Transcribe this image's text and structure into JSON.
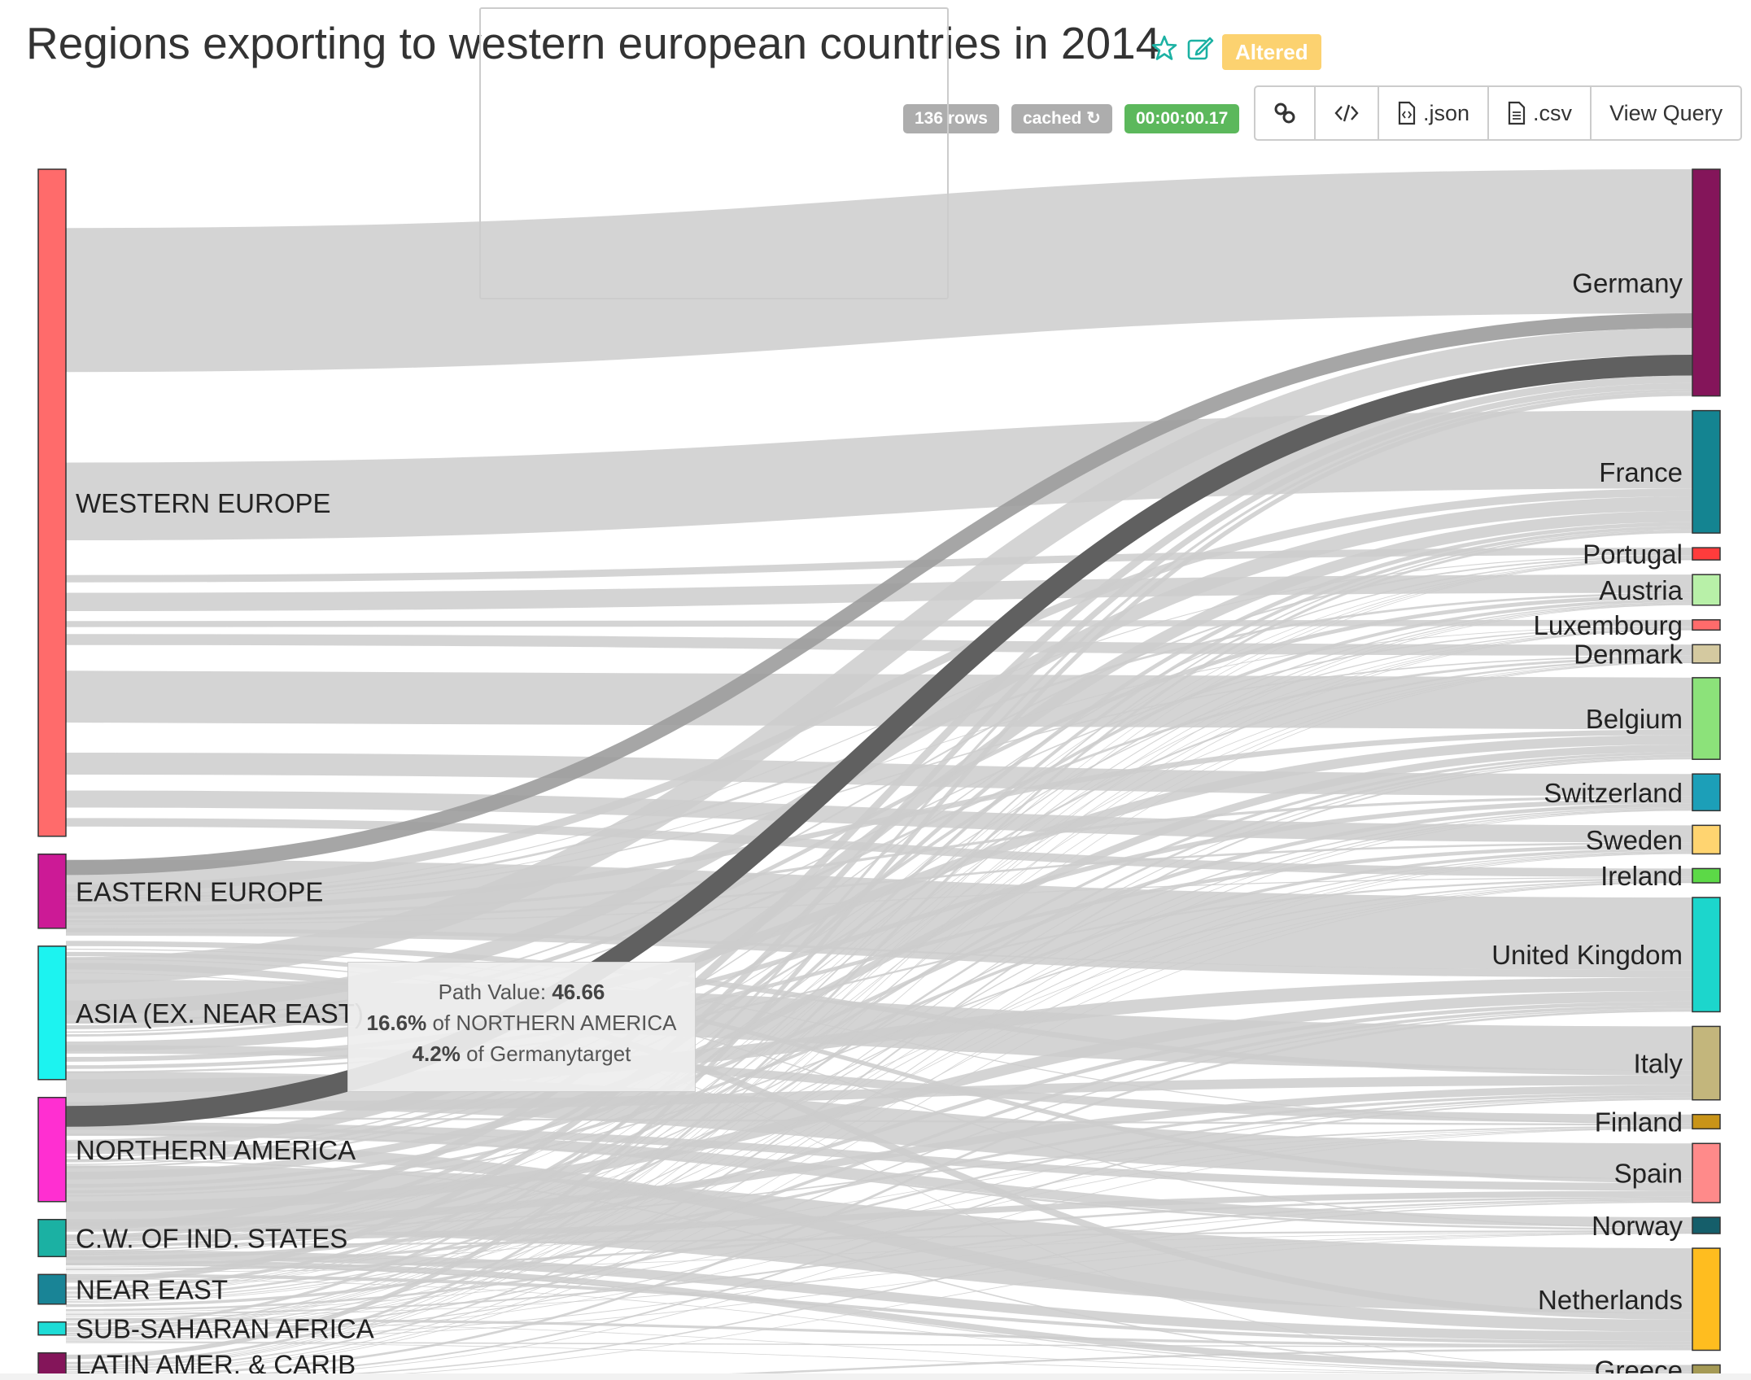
{
  "header": {
    "title": "Regions exporting to western european countries in 2014",
    "star_icon": "star-icon",
    "edit_icon": "edit-icon",
    "altered_label": "Altered",
    "rows_label": "136 rows",
    "cached_label": "cached",
    "refresh_icon": "refresh-icon",
    "timer_label": "00:00:00.17",
    "buttons": [
      {
        "icon": "link-icon",
        "label": ""
      },
      {
        "icon": "code-icon",
        "label": ""
      },
      {
        "icon": "json-file-icon",
        "label": ".json"
      },
      {
        "icon": "csv-file-icon",
        "label": ".csv"
      },
      {
        "icon": "",
        "label": "View Query"
      }
    ]
  },
  "tooltip": {
    "path_value_label": "Path Value:",
    "path_value": "46.66",
    "pct_source": "16.6%",
    "pct_source_text": "of NORTHERN AMERICA",
    "pct_target": "4.2%",
    "pct_target_text": "of Germanytarget"
  },
  "colors": {
    "link": "#cccccc",
    "link_highlight": "#9c9c9c",
    "link_selected": "#606060",
    "accent_altered": "#fcd270",
    "timer_green": "#5cb85c",
    "icon_teal": "#1bb1a3"
  },
  "chart_data": {
    "type": "sankey",
    "title": "Regions exporting to western european countries in 2014",
    "sources": [
      {
        "name": "WESTERN EUROPE",
        "color": "#ff6b6b",
        "value": 1800
      },
      {
        "name": "EASTERN EUROPE",
        "color": "#cc1a96",
        "value": 200
      },
      {
        "name": "ASIA (EX. NEAR EAST)",
        "color": "#1cf3f0",
        "value": 360
      },
      {
        "name": "NORTHERN AMERICA",
        "color": "#ff2fd1",
        "value": 281
      },
      {
        "name": "C.W. OF IND. STATES",
        "color": "#1bb1a3",
        "value": 100
      },
      {
        "name": "NEAR EAST",
        "color": "#198496",
        "value": 80
      },
      {
        "name": "SUB-SAHARAN AFRICA",
        "color": "#1edcd6",
        "value": 35
      },
      {
        "name": "LATIN AMER. & CARIB",
        "color": "#84155a",
        "value": 60
      }
    ],
    "targets": [
      {
        "name": "Germany",
        "color": "#84155a",
        "value": 1111
      },
      {
        "name": "France",
        "color": "#148491",
        "value": 600
      },
      {
        "name": "Portugal",
        "color": "#ff3c3c",
        "value": 60
      },
      {
        "name": "Austria",
        "color": "#b8f0a8",
        "value": 150
      },
      {
        "name": "Luxembourg",
        "color": "#ff6b6b",
        "value": 50
      },
      {
        "name": "Denmark",
        "color": "#d4c9a0",
        "value": 90
      },
      {
        "name": "Belgium",
        "color": "#8ce27a",
        "value": 400
      },
      {
        "name": "Switzerland",
        "color": "#1c9fb8",
        "value": 180
      },
      {
        "name": "Sweden",
        "color": "#ffd470",
        "value": 140
      },
      {
        "name": "Ireland",
        "color": "#5cd947",
        "value": 70
      },
      {
        "name": "United Kingdom",
        "color": "#1cd6cc",
        "value": 560
      },
      {
        "name": "Italy",
        "color": "#c3b67c",
        "value": 360
      },
      {
        "name": "Finland",
        "color": "#c99418",
        "value": 70
      },
      {
        "name": "Spain",
        "color": "#ff8a8a",
        "value": 290
      },
      {
        "name": "Norway",
        "color": "#155e6a",
        "value": 80
      },
      {
        "name": "Netherlands",
        "color": "#ffbd1f",
        "value": 500
      },
      {
        "name": "Greece",
        "color": "#a59a55",
        "value": 50
      }
    ],
    "highlighted_link": {
      "source": "NORTHERN AMERICA",
      "target": "Germany",
      "value": 46.66
    }
  }
}
